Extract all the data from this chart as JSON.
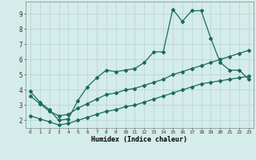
{
  "xlabel": "Humidex (Indice chaleur)",
  "background_color": "#d4ecea",
  "grid_color": "#b8d8d4",
  "line_color": "#1a6b5a",
  "xlim": [
    -0.5,
    23.5
  ],
  "ylim": [
    1.5,
    9.8
  ],
  "yticks": [
    2,
    3,
    4,
    5,
    6,
    7,
    8,
    9
  ],
  "xticks": [
    0,
    1,
    2,
    3,
    4,
    5,
    6,
    7,
    8,
    9,
    10,
    11,
    12,
    13,
    14,
    15,
    16,
    17,
    18,
    19,
    20,
    21,
    22,
    23
  ],
  "series1_x": [
    0,
    1,
    2,
    3,
    4,
    5,
    6,
    7,
    8,
    9,
    10,
    11,
    12,
    13,
    14,
    15,
    16,
    17,
    18,
    19,
    20,
    21,
    22,
    23
  ],
  "series1_y": [
    3.9,
    3.2,
    2.7,
    2.0,
    2.1,
    3.3,
    4.2,
    4.8,
    5.3,
    5.2,
    5.3,
    5.4,
    5.8,
    6.5,
    6.5,
    9.3,
    8.5,
    9.2,
    9.2,
    7.4,
    5.8,
    5.3,
    5.3,
    4.7
  ],
  "series2_x": [
    0,
    1,
    2,
    3,
    4,
    5,
    6,
    7,
    8,
    9,
    10,
    11,
    12,
    13,
    14,
    15,
    16,
    17,
    18,
    19,
    20,
    21,
    22,
    23
  ],
  "series2_y": [
    3.6,
    3.1,
    2.6,
    2.3,
    2.4,
    2.8,
    3.1,
    3.4,
    3.7,
    3.8,
    4.0,
    4.1,
    4.3,
    4.5,
    4.7,
    5.0,
    5.2,
    5.4,
    5.6,
    5.8,
    6.0,
    6.2,
    6.4,
    6.6
  ],
  "series3_x": [
    0,
    1,
    2,
    3,
    4,
    5,
    6,
    7,
    8,
    9,
    10,
    11,
    12,
    13,
    14,
    15,
    16,
    17,
    18,
    19,
    20,
    21,
    22,
    23
  ],
  "series3_y": [
    2.3,
    2.1,
    1.9,
    1.7,
    1.8,
    2.0,
    2.2,
    2.4,
    2.6,
    2.7,
    2.9,
    3.0,
    3.2,
    3.4,
    3.6,
    3.8,
    4.0,
    4.2,
    4.4,
    4.5,
    4.6,
    4.7,
    4.8,
    4.9
  ]
}
